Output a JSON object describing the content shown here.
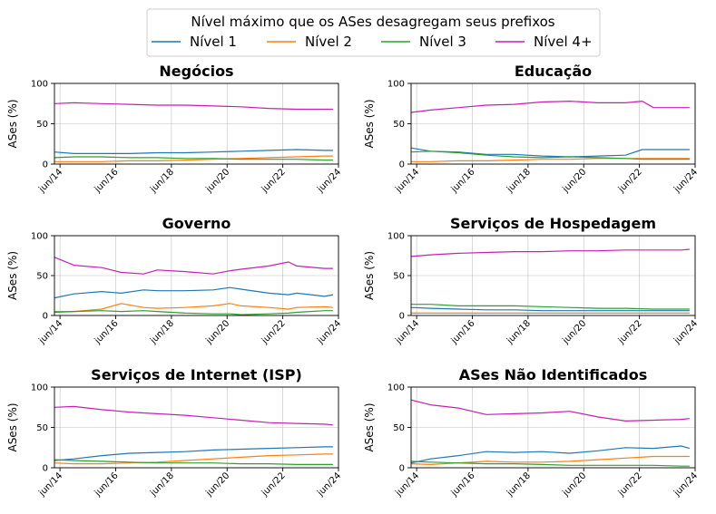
{
  "legend": {
    "title": "Nível máximo que os ASes desagregam seus prefixos",
    "placement": "top-center",
    "entries": [
      "Nível 1",
      "Nível 2",
      "Nível 3",
      "Nível 4+"
    ]
  },
  "colors": {
    "Nível 1": "#1f77b4",
    "Nível 2": "#ff7f0e",
    "Nível 3": "#2ca02c",
    "Nível 4+": "#c71fb0"
  },
  "chart_data": [
    {
      "type": "line",
      "title": "Negócios",
      "ylabel": "ASes (%)",
      "ylim": [
        0,
        100
      ],
      "yticks": [
        0,
        50,
        100
      ],
      "xlim": [
        2014.3,
        2024.5
      ],
      "xticks": [
        2014.5,
        2016.5,
        2018.5,
        2020.5,
        2022.5,
        2024.5
      ],
      "xtick_labels": [
        "jun/14",
        "jun/16",
        "jun/18",
        "jun/20",
        "jun/22",
        "jun/24"
      ],
      "grid": true,
      "x": [
        2014.3,
        2015.0,
        2016.0,
        2017.0,
        2018.0,
        2019.0,
        2020.0,
        2021.0,
        2022.0,
        2023.0,
        2024.0,
        2024.3
      ],
      "series": [
        {
          "name": "Nível 1",
          "values": [
            15,
            13,
            13,
            13,
            14,
            14,
            15,
            16,
            17,
            18,
            17,
            17
          ]
        },
        {
          "name": "Nível 2",
          "values": [
            3,
            3,
            3,
            4,
            4,
            5,
            6,
            7,
            8,
            9,
            10,
            10
          ]
        },
        {
          "name": "Nível 3",
          "values": [
            8,
            9,
            9,
            8,
            8,
            7,
            7,
            6,
            6,
            6,
            5,
            5
          ]
        },
        {
          "name": "Nível 4+",
          "values": [
            75,
            76,
            75,
            74,
            73,
            73,
            72,
            71,
            69,
            68,
            68,
            68
          ]
        }
      ]
    },
    {
      "type": "line",
      "title": "Educação",
      "ylabel": "ASes (%)",
      "ylim": [
        0,
        100
      ],
      "yticks": [
        0,
        50,
        100
      ],
      "xlim": [
        2014.3,
        2024.5
      ],
      "xticks": [
        2014.5,
        2016.5,
        2018.5,
        2020.5,
        2022.5,
        2024.5
      ],
      "xtick_labels": [
        "jun/14",
        "jun/16",
        "jun/18",
        "jun/20",
        "jun/22",
        "jun/24"
      ],
      "grid": true,
      "x": [
        2014.3,
        2015.0,
        2016.0,
        2017.0,
        2018.0,
        2019.0,
        2020.0,
        2021.0,
        2022.0,
        2022.6,
        2023.0,
        2024.0,
        2024.3
      ],
      "series": [
        {
          "name": "Nível 1",
          "values": [
            20,
            16,
            15,
            12,
            12,
            10,
            9,
            10,
            11,
            18,
            18,
            18,
            18
          ]
        },
        {
          "name": "Nível 2",
          "values": [
            3,
            3,
            4,
            4,
            5,
            6,
            6,
            7,
            7,
            7,
            7,
            7,
            7
          ]
        },
        {
          "name": "Nível 3",
          "values": [
            15,
            16,
            14,
            11,
            9,
            8,
            9,
            8,
            7,
            6,
            6,
            6,
            6
          ]
        },
        {
          "name": "Nível 4+",
          "values": [
            64,
            67,
            70,
            73,
            74,
            77,
            78,
            76,
            76,
            78,
            70,
            70,
            70
          ]
        }
      ]
    },
    {
      "type": "line",
      "title": "Governo",
      "ylabel": "ASes (%)",
      "ylim": [
        0,
        100
      ],
      "yticks": [
        0,
        50,
        100
      ],
      "xlim": [
        2014.3,
        2024.5
      ],
      "xticks": [
        2014.5,
        2016.5,
        2018.5,
        2020.5,
        2022.5,
        2024.5
      ],
      "xtick_labels": [
        "jun/14",
        "jun/16",
        "jun/18",
        "jun/20",
        "jun/22",
        "jun/24"
      ],
      "grid": true,
      "x": [
        2014.3,
        2015.0,
        2016.0,
        2016.7,
        2017.5,
        2018.0,
        2019.0,
        2020.0,
        2020.6,
        2021.0,
        2022.0,
        2022.7,
        2023.0,
        2024.0,
        2024.3
      ],
      "series": [
        {
          "name": "Nível 1",
          "values": [
            22,
            27,
            30,
            28,
            32,
            31,
            31,
            32,
            35,
            33,
            28,
            26,
            28,
            24,
            26
          ]
        },
        {
          "name": "Nível 2",
          "values": [
            5,
            5,
            8,
            15,
            10,
            9,
            10,
            12,
            15,
            12,
            10,
            8,
            10,
            11,
            10
          ]
        },
        {
          "name": "Nível 3",
          "values": [
            4,
            5,
            6,
            5,
            6,
            5,
            3,
            2,
            2,
            1,
            2,
            3,
            4,
            6,
            6
          ]
        },
        {
          "name": "Nível 4+",
          "values": [
            73,
            63,
            60,
            54,
            52,
            57,
            55,
            52,
            56,
            58,
            62,
            67,
            62,
            59,
            59
          ]
        }
      ]
    },
    {
      "type": "line",
      "title": "Serviços de Hospedagem",
      "ylabel": "ASes (%)",
      "ylim": [
        0,
        100
      ],
      "yticks": [
        0,
        50,
        100
      ],
      "xlim": [
        2014.3,
        2024.5
      ],
      "xticks": [
        2014.5,
        2016.5,
        2018.5,
        2020.5,
        2022.5,
        2024.5
      ],
      "xtick_labels": [
        "jun/14",
        "jun/16",
        "jun/18",
        "jun/20",
        "jun/22",
        "jun/24"
      ],
      "grid": true,
      "x": [
        2014.3,
        2015.0,
        2016.0,
        2017.0,
        2018.0,
        2019.0,
        2020.0,
        2021.0,
        2022.0,
        2023.0,
        2024.0,
        2024.3
      ],
      "series": [
        {
          "name": "Nível 1",
          "values": [
            10,
            9,
            8,
            7,
            7,
            6,
            6,
            6,
            6,
            6,
            6,
            6
          ]
        },
        {
          "name": "Nível 2",
          "values": [
            3,
            3,
            3,
            3,
            3,
            3,
            3,
            3,
            3,
            3,
            3,
            3
          ]
        },
        {
          "name": "Nível 3",
          "values": [
            14,
            14,
            12,
            12,
            12,
            11,
            10,
            9,
            9,
            8,
            8,
            8
          ]
        },
        {
          "name": "Nível 4+",
          "values": [
            74,
            76,
            78,
            79,
            80,
            80,
            81,
            81,
            82,
            82,
            82,
            83
          ]
        }
      ]
    },
    {
      "type": "line",
      "title": "Serviços de Internet (ISP)",
      "ylabel": "ASes (%)",
      "ylim": [
        0,
        100
      ],
      "yticks": [
        0,
        50,
        100
      ],
      "xlim": [
        2014.3,
        2024.5
      ],
      "xticks": [
        2014.5,
        2016.5,
        2018.5,
        2020.5,
        2022.5,
        2024.5
      ],
      "xtick_labels": [
        "jun/14",
        "jun/16",
        "jun/18",
        "jun/20",
        "jun/22",
        "jun/24"
      ],
      "grid": true,
      "x": [
        2014.3,
        2015.0,
        2016.0,
        2017.0,
        2018.0,
        2019.0,
        2020.0,
        2021.0,
        2022.0,
        2023.0,
        2024.0,
        2024.3
      ],
      "series": [
        {
          "name": "Nível 1",
          "values": [
            9,
            11,
            15,
            18,
            19,
            20,
            22,
            23,
            24,
            25,
            26,
            26
          ]
        },
        {
          "name": "Nível 2",
          "values": [
            6,
            5,
            5,
            6,
            7,
            9,
            11,
            13,
            15,
            16,
            17,
            17
          ]
        },
        {
          "name": "Nível 3",
          "values": [
            10,
            9,
            8,
            7,
            6,
            6,
            6,
            5,
            5,
            4,
            4,
            4
          ]
        },
        {
          "name": "Nível 4+",
          "values": [
            75,
            76,
            72,
            69,
            67,
            65,
            62,
            59,
            56,
            55,
            54,
            53
          ]
        }
      ]
    },
    {
      "type": "line",
      "title": "ASes Não Identificados",
      "ylabel": "ASes (%)",
      "ylim": [
        0,
        100
      ],
      "yticks": [
        0,
        50,
        100
      ],
      "xlim": [
        2014.3,
        2024.5
      ],
      "xticks": [
        2014.5,
        2016.5,
        2018.5,
        2020.5,
        2022.5,
        2024.5
      ],
      "xtick_labels": [
        "jun/14",
        "jun/16",
        "jun/18",
        "jun/20",
        "jun/22",
        "jun/24"
      ],
      "grid": true,
      "x": [
        2014.3,
        2015.0,
        2016.0,
        2017.0,
        2018.0,
        2019.0,
        2020.0,
        2021.0,
        2022.0,
        2023.0,
        2024.0,
        2024.3
      ],
      "series": [
        {
          "name": "Nível 1",
          "values": [
            6,
            11,
            15,
            20,
            19,
            20,
            18,
            21,
            25,
            24,
            27,
            24
          ]
        },
        {
          "name": "Nível 2",
          "values": [
            5,
            4,
            6,
            8,
            7,
            7,
            8,
            10,
            12,
            14,
            14,
            14
          ]
        },
        {
          "name": "Nível 3",
          "values": [
            8,
            7,
            6,
            5,
            5,
            4,
            3,
            3,
            3,
            3,
            2,
            2
          ]
        },
        {
          "name": "Nível 4+",
          "values": [
            84,
            78,
            74,
            66,
            67,
            68,
            70,
            63,
            58,
            59,
            60,
            61
          ]
        }
      ]
    }
  ]
}
